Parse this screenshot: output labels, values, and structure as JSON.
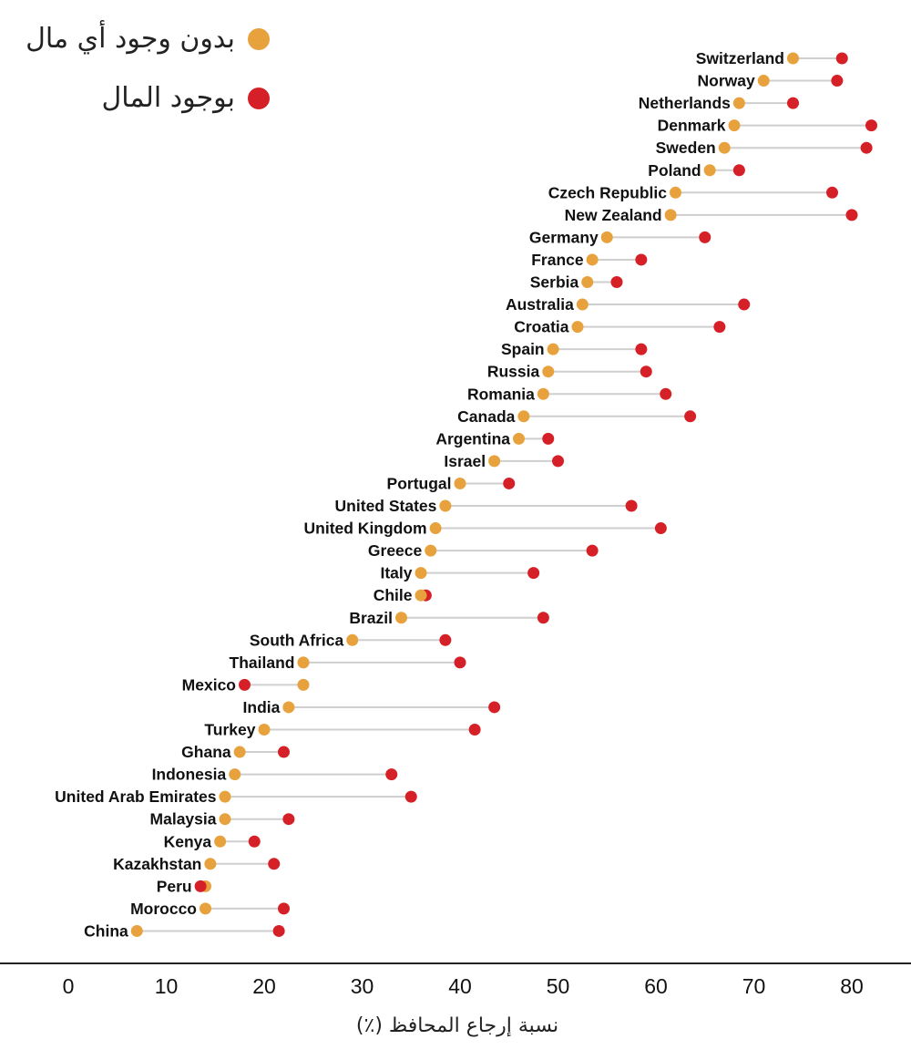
{
  "chart_data": {
    "type": "dumbbell",
    "xlabel": "نسبة إرجاع المحافظ (٪)",
    "xlim": [
      0,
      85
    ],
    "xticks": [
      "0",
      "10",
      "20",
      "30",
      "40",
      "50",
      "60",
      "70",
      "80"
    ],
    "xtick_values": [
      0,
      10,
      20,
      30,
      40,
      50,
      60,
      70,
      80
    ],
    "legend": {
      "position": "top-left",
      "items": [
        {
          "label": "بدون وجود أي مال",
          "color": "#E8A23D"
        },
        {
          "label": "بوجود المال",
          "color": "#D62027"
        }
      ]
    },
    "series_colors": {
      "no_money": "#E8A23D",
      "money": "#D62027"
    },
    "rows": [
      {
        "country": "Switzerland",
        "no_money": 74,
        "money": 79
      },
      {
        "country": "Norway",
        "no_money": 71,
        "money": 78.5
      },
      {
        "country": "Netherlands",
        "no_money": 68.5,
        "money": 74
      },
      {
        "country": "Denmark",
        "no_money": 68,
        "money": 82
      },
      {
        "country": "Sweden",
        "no_money": 67,
        "money": 81.5
      },
      {
        "country": "Poland",
        "no_money": 65.5,
        "money": 68.5
      },
      {
        "country": "Czech Republic",
        "no_money": 62,
        "money": 78
      },
      {
        "country": "New Zealand",
        "no_money": 61.5,
        "money": 80
      },
      {
        "country": "Germany",
        "no_money": 55,
        "money": 65
      },
      {
        "country": "France",
        "no_money": 53.5,
        "money": 58.5
      },
      {
        "country": "Serbia",
        "no_money": 53,
        "money": 56
      },
      {
        "country": "Australia",
        "no_money": 52.5,
        "money": 69
      },
      {
        "country": "Croatia",
        "no_money": 52,
        "money": 66.5
      },
      {
        "country": "Spain",
        "no_money": 49.5,
        "money": 58.5
      },
      {
        "country": "Russia",
        "no_money": 49,
        "money": 59
      },
      {
        "country": "Romania",
        "no_money": 48.5,
        "money": 61
      },
      {
        "country": "Canada",
        "no_money": 46.5,
        "money": 63.5
      },
      {
        "country": "Argentina",
        "no_money": 46,
        "money": 49
      },
      {
        "country": "Israel",
        "no_money": 43.5,
        "money": 50
      },
      {
        "country": "Portugal",
        "no_money": 40,
        "money": 45
      },
      {
        "country": "United States",
        "no_money": 38.5,
        "money": 57.5
      },
      {
        "country": "United Kingdom",
        "no_money": 37.5,
        "money": 60.5
      },
      {
        "country": "Greece",
        "no_money": 37,
        "money": 53.5
      },
      {
        "country": "Italy",
        "no_money": 36,
        "money": 47.5
      },
      {
        "country": "Chile",
        "no_money": 36,
        "money": 36.5
      },
      {
        "country": "Brazil",
        "no_money": 34,
        "money": 48.5
      },
      {
        "country": "South Africa",
        "no_money": 29,
        "money": 38.5
      },
      {
        "country": "Thailand",
        "no_money": 24,
        "money": 40
      },
      {
        "country": "Mexico",
        "no_money": 24,
        "money": 18
      },
      {
        "country": "India",
        "no_money": 22.5,
        "money": 43.5
      },
      {
        "country": "Turkey",
        "no_money": 20,
        "money": 41.5
      },
      {
        "country": "Ghana",
        "no_money": 17.5,
        "money": 22
      },
      {
        "country": "Indonesia",
        "no_money": 17,
        "money": 33
      },
      {
        "country": "United Arab Emirates",
        "no_money": 16,
        "money": 35
      },
      {
        "country": "Malaysia",
        "no_money": 16,
        "money": 22.5
      },
      {
        "country": "Kenya",
        "no_money": 15.5,
        "money": 19
      },
      {
        "country": "Kazakhstan",
        "no_money": 14.5,
        "money": 21
      },
      {
        "country": "Peru",
        "no_money": 14,
        "money": 13.5
      },
      {
        "country": "Morocco",
        "no_money": 14,
        "money": 22
      },
      {
        "country": "China",
        "no_money": 7,
        "money": 21.5
      }
    ]
  }
}
